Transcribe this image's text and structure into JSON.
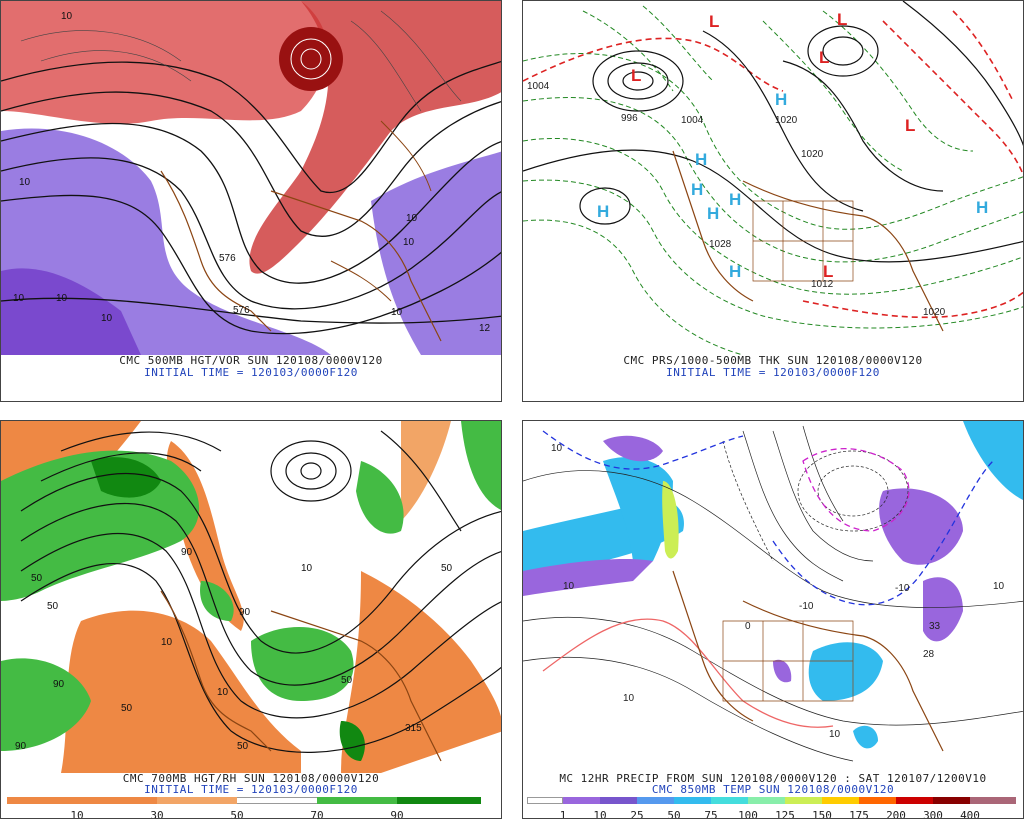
{
  "panels": [
    {
      "id": "p500",
      "title": "CMC 500MB HGT/VOR SUN 120108/0000V120",
      "subtitle": "INITIAL TIME = 120103/0000F120",
      "contour_labels": [
        "10",
        "10",
        "10",
        "10",
        "576",
        "10",
        "10",
        "10",
        "576",
        "10",
        "12"
      ]
    },
    {
      "id": "psfc",
      "title": "CMC PRS/1000-500MB THK SUN 120108/0000V120",
      "subtitle": "INITIAL TIME = 120103/0000F120",
      "pressure_labels": [
        "1004",
        "996",
        "1004",
        "1020",
        "1012",
        "1020",
        "1028",
        "1020"
      ],
      "symbols": {
        "high": "H",
        "low": "L"
      }
    },
    {
      "id": "p700",
      "title": "CMC 700MB HGT/RH SUN 120108/0000V120",
      "subtitle": "INITIAL TIME = 120103/0000F120",
      "rh_labels": [
        "50",
        "90",
        "50",
        "10",
        "90",
        "90",
        "50",
        "50",
        "90",
        "10",
        "50",
        "10",
        "50",
        "315"
      ],
      "scale": {
        "labels": [
          "10",
          "30",
          "50",
          "70",
          "90"
        ],
        "colors": [
          "#ee8844",
          "#f2a566",
          "#f7c9a0",
          "#ffffff",
          "#ffffff",
          "#44bb44",
          "#118811"
        ]
      }
    },
    {
      "id": "p850",
      "title": "MC 12HR PRECIP FROM SUN 120108/0000V120 : SAT 120107/1200V10",
      "subtitle": "CMC 850MB TEMP SUN 120108/0000V120",
      "temp_labels": [
        "10",
        "10",
        "0",
        "-10",
        "-10",
        "10",
        "10",
        "33",
        "28",
        "10"
      ],
      "scale": {
        "labels": [
          "1",
          "10",
          "25",
          "50",
          "75",
          "100",
          "125",
          "150",
          "175",
          "200",
          "300",
          "400"
        ],
        "colors": [
          "#ffffff",
          "#9966dd",
          "#7755cc",
          "#5599ee",
          "#33bbee",
          "#44dddd",
          "#88eeaa",
          "#ccee55",
          "#ffcc00",
          "#ff6600",
          "#cc0000",
          "#aa6677"
        ]
      }
    }
  ]
}
